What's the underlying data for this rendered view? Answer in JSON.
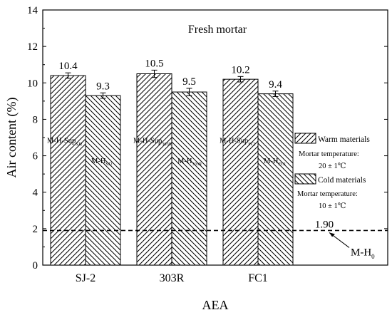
{
  "chart_data": {
    "type": "bar",
    "title": "Fresh mortar",
    "xlabel": "AEA",
    "ylabel": "Air content (%)",
    "categories": [
      "SJ-2",
      "303R",
      "FC1"
    ],
    "ylim": [
      0,
      14
    ],
    "yticks": [
      0,
      2,
      4,
      6,
      8,
      10,
      12,
      14
    ],
    "grid": false,
    "legend_position": "right",
    "series": [
      {
        "name": "Warm materials",
        "legend_note": "Mortar temperature: 20 ± 1℃",
        "pattern": "hatch-forward",
        "values": [
          10.4,
          10.5,
          10.2
        ],
        "errors": [
          0.15,
          0.2,
          0.15
        ],
        "value_labels": [
          "10.4",
          "10.5",
          "10.2"
        ],
        "bar_labels": [
          {
            "base": "M-H-Sup",
            "sub": "SJ2"
          },
          {
            "base": "M-H-Sup",
            "sub": "303R"
          },
          {
            "base": "M-H-Sup",
            "sub": "FC1"
          }
        ]
      },
      {
        "name": "Cold materials",
        "legend_note": "Mortar temperature: 10 ± 1℃",
        "pattern": "hatch-backward",
        "values": [
          9.3,
          9.5,
          9.4
        ],
        "errors": [
          0.15,
          0.2,
          0.15
        ],
        "value_labels": [
          "9.3",
          "9.5",
          "9.4"
        ],
        "bar_labels": [
          {
            "base": "M-H",
            "sub": "SJ2"
          },
          {
            "base": "M-H",
            "sub": "303R"
          },
          {
            "base": "M-H",
            "sub": "FC1"
          }
        ]
      }
    ],
    "reference_line": {
      "value": 1.9,
      "value_label": "1.90",
      "style": "dashed",
      "annotation": {
        "base": "M-H",
        "sub": "0"
      }
    }
  }
}
